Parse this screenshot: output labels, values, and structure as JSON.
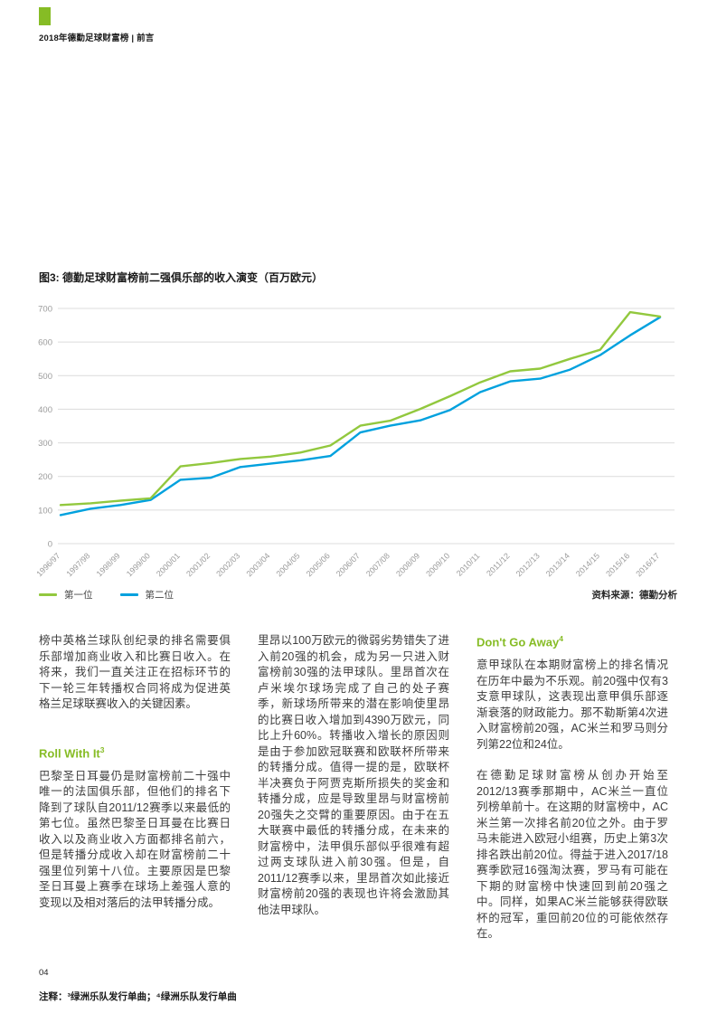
{
  "header": {
    "title": "2018年德勤足球财富榜 | 前言"
  },
  "colors": {
    "brand_green": "#86BC25",
    "first_place_line": "#92C83E",
    "second_place_line": "#00A1DE",
    "heading_green": "#86BC25",
    "grid_gray": "#DCDCDC",
    "tick_gray": "#9B9B9B"
  },
  "chart_data": {
    "type": "line",
    "title": "图3: 德勤足球财富榜前二强俱乐部的收入演变（百万欧元）",
    "x": [
      "1996/97",
      "1997/98",
      "1998/99",
      "1999/00",
      "2000/01",
      "2001/02",
      "2002/03",
      "2003/04",
      "2004/05",
      "2005/06",
      "2006/07",
      "2007/08",
      "2008/09",
      "2009/10",
      "2010/11",
      "2011/12",
      "2012/13",
      "2013/14",
      "2014/15",
      "2015/16",
      "2016/17"
    ],
    "series": [
      {
        "name": "第一位",
        "color": "#92C83E",
        "values": [
          115,
          120,
          128,
          135,
          230,
          240,
          252,
          259,
          271,
          292,
          351,
          366,
          401,
          439,
          480,
          513,
          521,
          550,
          577,
          689,
          676
        ]
      },
      {
        "name": "第二位",
        "color": "#00A1DE",
        "values": [
          85,
          104,
          115,
          130,
          190,
          196,
          228,
          238,
          248,
          261,
          331,
          351,
          367,
          398,
          451,
          483,
          491,
          518,
          561,
          620,
          674
        ]
      }
    ],
    "xlabel": "",
    "ylabel": "",
    "ylim": [
      0,
      700
    ],
    "yticks": [
      0,
      100,
      200,
      300,
      400,
      500,
      600,
      700
    ],
    "grid": "horizontal",
    "legend_position": "bottom-left",
    "source": "资料来源：德勤分析"
  },
  "columns": {
    "col1": {
      "para1": "榜中英格兰球队创纪录的排名需要俱乐部增加商业收入和比赛日收入。在将来，我们一直关注正在招标环节的下一轮三年转播权合同将成为促进英格兰足球联赛收入的关键因素。",
      "heading": {
        "text": "Roll With It",
        "sup": "3"
      },
      "para2": "巴黎圣日耳曼仍是财富榜前二十强中唯一的法国俱乐部，但他们的排名下降到了球队自2011/12赛季以来最低的第七位。虽然巴黎圣日耳曼在比赛日收入以及商业收入方面都排名前六，但是转播分成收入却在财富榜前二十强里位列第十八位。主要原因是巴黎圣日耳曼上赛季在球场上差强人意的变现以及相对落后的法甲转播分成。"
    },
    "col2": {
      "para1": "里昂以100万欧元的微弱劣势错失了进入前20强的机会，成为另一只进入财富榜前30强的法甲球队。里昂首次在卢米埃尔球场完成了自己的处子赛季，新球场所带来的潜在影响使里昂的比赛日收入增加到4390万欧元，同比上升60%。转播收入增长的原因则是由于参加欧冠联赛和欧联杯所带来的转播分成。值得一提的是，欧联杯半决赛负于阿贾克斯所损失的奖金和转播分成，应是导致里昂与财富榜前20强失之交臂的重要原因。由于在五大联赛中最低的转播分成，在未来的财富榜中，法甲俱乐部似乎很难有超过两支球队进入前30强。但是，自2011/12赛季以来，里昂首次如此接近财富榜前20强的表现也许将会激励其他法甲球队。"
    },
    "col3": {
      "heading": {
        "text": "Don't Go Away",
        "sup": "4"
      },
      "para1": "意甲球队在本期财富榜上的排名情况在历年中最为不乐观。前20强中仅有3支意甲球队，这表现出意甲俱乐部逐渐衰落的财政能力。那不勒斯第4次进入财富榜前20强，AC米兰和罗马则分列第22位和24位。",
      "para2": "在德勤足球财富榜从创办开始至2012/13赛季那期中，AC米兰一直位列榜单前十。在这期的财富榜中，AC米兰第一次排名前20位之外。由于罗马未能进入欧冠小组赛，历史上第3次排名跌出前20位。得益于进入2017/18赛季欧冠16强淘汰赛，罗马有可能在下期的财富榜中快速回到前20强之中。同样，如果AC米兰能够获得欧联杯的冠军，重回前20位的可能依然存在。"
    }
  },
  "footer": {
    "page_number": "04",
    "note_label": "注释：",
    "note_text": "³绿洲乐队发行单曲；⁴绿洲乐队发行单曲"
  }
}
